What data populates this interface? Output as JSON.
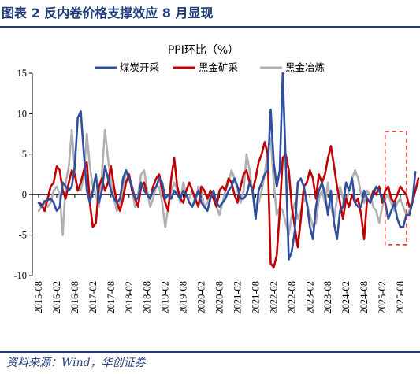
{
  "figure": {
    "title": "图表 2 反内卷价格支撑效应 8 月显现",
    "source": "资料来源：Wind，华创证券"
  },
  "chart_data": {
    "type": "line",
    "title": "PPI环比（%）",
    "ylim": [
      -10,
      15
    ],
    "yticks": [
      15,
      10,
      5,
      0,
      -5,
      -10
    ],
    "ytick_labels": [
      "15",
      "10",
      "5",
      "0",
      "-5",
      "-10"
    ],
    "x_start": "2015-08",
    "x_end": "2025-08",
    "xtick_labels": [
      "2015-08",
      "2016-02",
      "2016-08",
      "2017-02",
      "2017-08",
      "2018-02",
      "2018-08",
      "2019-02",
      "2019-08",
      "2020-02",
      "2020-08",
      "2021-02",
      "2021-08",
      "2022-02",
      "2022-08",
      "2023-02",
      "2023-08",
      "2024-02",
      "2024-08",
      "2025-02",
      "2025-08"
    ],
    "legend_position": "top",
    "highlight": {
      "from": "2025-04",
      "to": "2025-08",
      "style": "red dashed box"
    },
    "series": [
      {
        "name": "煤炭开采",
        "color": "#2f4f9e",
        "values": [
          -1.0,
          -1.5,
          -0.8,
          -0.7,
          -0.5,
          -1.0,
          -2.0,
          -1.5,
          1.5,
          1.0,
          0.5,
          1.0,
          3.5,
          9.5,
          10.3,
          5.0,
          0.5,
          -1.0,
          0.5,
          2.5,
          -1.0,
          0.5,
          3.5,
          2.0,
          0.5,
          -0.5,
          -1.0,
          -0.5,
          2.0,
          3.0,
          2.0,
          1.0,
          -0.5,
          -0.5,
          1.5,
          0.5,
          0.0,
          -0.5,
          0.5,
          1.0,
          2.0,
          1.5,
          -0.5,
          0.0,
          -0.5,
          0.5,
          0.0,
          -0.5,
          0.5,
          0.0,
          -1.0,
          -1.5,
          -0.5,
          0.5,
          -1.0,
          -1.5,
          -2.0,
          -0.5,
          0.5,
          -1.0,
          -1.5,
          -1.0,
          -0.5,
          0.5,
          1.0,
          2.0,
          1.0,
          -0.5,
          -0.5,
          0.0,
          1.5,
          0.5,
          -3.0,
          0.5,
          1.5,
          2.5,
          3.0,
          10.5,
          4.0,
          1.0,
          3.0,
          15.0,
          4.0,
          -8.0,
          -7.0,
          -4.5,
          1.5,
          2.0,
          1.0,
          -1.0,
          -4.0,
          -5.5,
          -1.5,
          0.5,
          1.5,
          0.0,
          -2.5,
          0.5,
          -3.5,
          -5.5,
          -2.0,
          -1.5,
          1.5,
          0.5,
          2.0,
          -1.0,
          -1.5,
          -1.5,
          0.5,
          -0.5,
          -1.0,
          0.0,
          1.0,
          0.5,
          -0.5,
          -1.0,
          -3.0,
          -2.0,
          -1.0,
          -3.0,
          -4.0,
          -4.0,
          -2.5,
          -2.5,
          -1.0,
          2.8
        ]
      },
      {
        "name": "黑金矿采",
        "color": "#c00000",
        "values": [
          -1.0,
          -1.2,
          -2.0,
          -0.5,
          1.0,
          1.5,
          3.5,
          3.0,
          0.5,
          -0.5,
          1.5,
          3.0,
          2.5,
          0.5,
          1.5,
          3.0,
          4.0,
          -1.0,
          -4.0,
          -3.5,
          1.0,
          2.0,
          0.5,
          1.5,
          3.5,
          1.0,
          -1.0,
          -2.0,
          -0.5,
          1.5,
          2.5,
          0.5,
          -0.5,
          -1.5,
          1.0,
          1.5,
          0.0,
          -0.5,
          1.0,
          2.0,
          2.5,
          0.5,
          -1.0,
          -2.0,
          2.0,
          4.5,
          1.0,
          -0.5,
          -1.0,
          0.5,
          1.5,
          0.5,
          -0.5,
          -1.5,
          1.0,
          0.5,
          -0.5,
          0.5,
          -0.5,
          -1.5,
          0.5,
          1.0,
          0.5,
          2.0,
          1.5,
          0.0,
          -1.0,
          1.0,
          2.5,
          3.0,
          1.5,
          0.5,
          2.0,
          4.0,
          5.0,
          6.5,
          5.0,
          -8.5,
          -9.0,
          -7.5,
          -2.0,
          4.5,
          5.0,
          3.0,
          -1.5,
          -4.0,
          -6.5,
          -3.0,
          1.0,
          1.5,
          3.0,
          2.0,
          -0.5,
          2.5,
          1.5,
          2.5,
          4.5,
          6.0,
          3.5,
          1.0,
          -1.0,
          -3.0,
          -0.5,
          -1.5,
          0.0,
          -1.0,
          -0.5,
          -2.5,
          -5.5,
          -0.5,
          -1.0,
          0.5,
          0.0,
          1.0,
          -1.0,
          0.5,
          1.0,
          -0.5,
          -1.0,
          0.0,
          1.0,
          0.5,
          0.0,
          -1.5,
          -1.0,
          0.5,
          2.0
        ]
      },
      {
        "name": "黑金冶炼",
        "color": "#b0b0b0",
        "values": [
          -2.0,
          -1.5,
          -1.0,
          -1.5,
          -1.0,
          0.5,
          1.0,
          0.0,
          -5.0,
          1.5,
          3.5,
          8.0,
          3.0,
          0.5,
          0.5,
          2.5,
          7.5,
          3.5,
          1.0,
          0.0,
          -1.5,
          2.5,
          8.0,
          4.5,
          1.5,
          -0.5,
          -2.0,
          -1.0,
          0.5,
          3.0,
          2.5,
          0.5,
          -1.5,
          0.0,
          2.5,
          3.0,
          0.5,
          -1.5,
          -0.5,
          1.0,
          1.0,
          -1.0,
          -4.0,
          -1.5,
          0.5,
          1.5,
          0.5,
          -1.0,
          1.5,
          0.0,
          -0.5,
          0.5,
          -1.0,
          1.0,
          0.5,
          -1.5,
          -1.0,
          0.5,
          -0.5,
          -1.5,
          -2.5,
          -1.0,
          0.5,
          1.5,
          3.0,
          2.0,
          0.5,
          -1.0,
          0.5,
          5.0,
          3.0,
          0.0,
          -1.5,
          -1.0,
          0.5,
          2.5,
          5.5,
          7.0,
          1.5,
          -2.5,
          -1.5,
          -2.0,
          -3.5,
          -5.0,
          -2.5,
          -1.0,
          -3.0,
          -2.0,
          -0.5,
          -1.0,
          -2.5,
          -4.0,
          -3.5,
          -0.5,
          0.5,
          -1.0,
          1.5,
          -1.5,
          -3.0,
          -0.5,
          1.0,
          -0.5,
          -1.0,
          0.5,
          2.0,
          3.0,
          2.0,
          0.0,
          -1.0,
          0.5,
          0.0,
          -1.5,
          -2.0,
          -3.5,
          -1.5,
          -0.5,
          0.0,
          -1.0,
          -2.0,
          -1.0,
          -0.5,
          -1.5,
          -2.5,
          -2.0,
          -1.0,
          0.5,
          1.5
        ]
      }
    ]
  }
}
